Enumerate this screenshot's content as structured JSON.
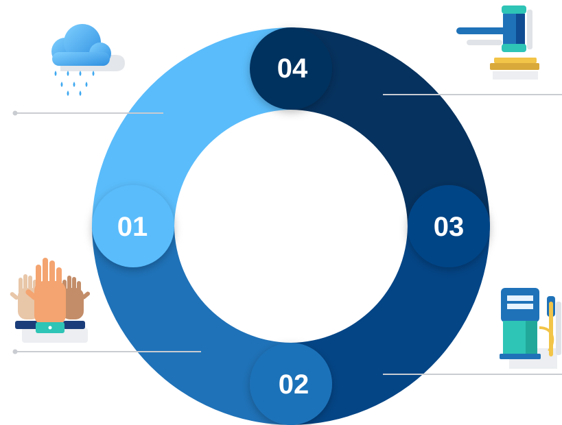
{
  "segments": [
    {
      "id": "01",
      "label": "01",
      "color": "#5abcfb",
      "icon": "rain-cloud-icon"
    },
    {
      "id": "02",
      "label": "02",
      "color": "#1f72b8",
      "icon": "raised-hands-icon"
    },
    {
      "id": "03",
      "label": "03",
      "color": "#044586",
      "icon": "fuel-pump-icon"
    },
    {
      "id": "04",
      "label": "04",
      "color": "#06325f",
      "icon": "gavel-icon"
    }
  ],
  "colors": {
    "connector": "#c9ccd1",
    "accent_teal": "#2ec4b6",
    "accent_gold": "#f2c447",
    "skin_light": "#e8c6a8",
    "skin_orange": "#f4a470",
    "skin_brown": "#c38d69"
  }
}
